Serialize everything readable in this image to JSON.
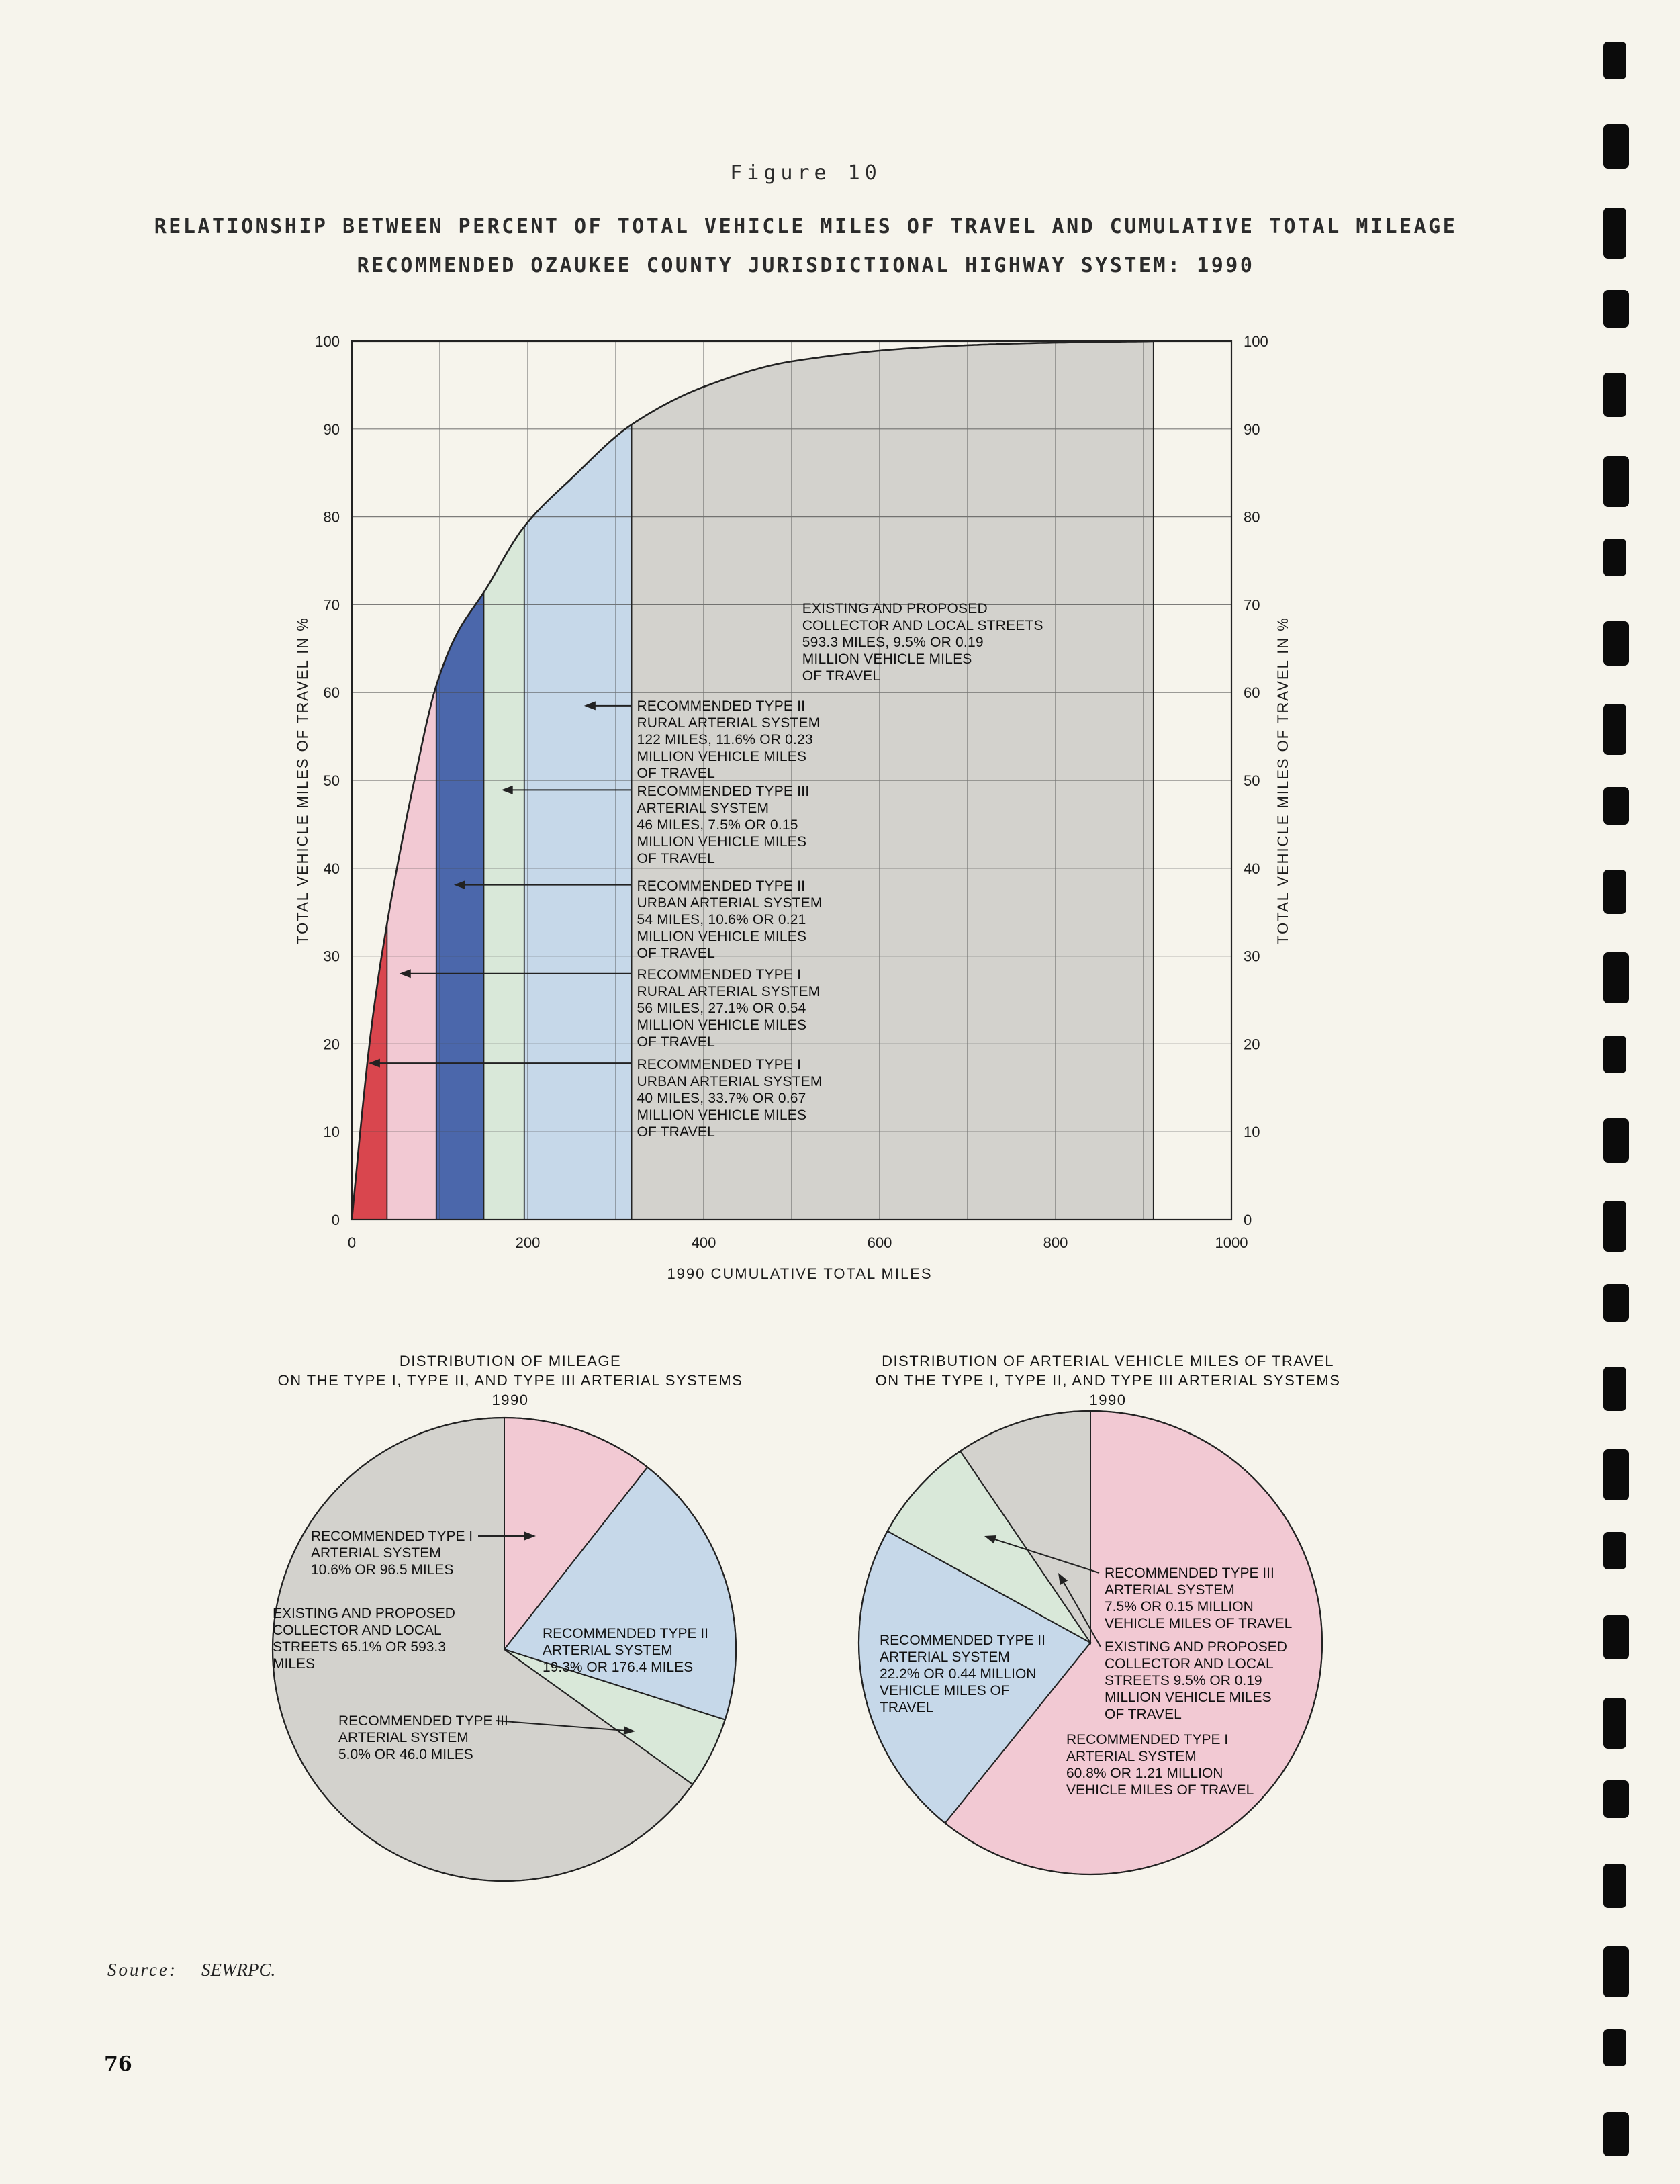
{
  "page": {
    "figure_label": "Figure 10",
    "title_line1": "RELATIONSHIP BETWEEN PERCENT OF TOTAL VEHICLE MILES OF TRAVEL AND CUMULATIVE TOTAL MILEAGE",
    "title_line2": "RECOMMENDED OZAUKEE COUNTY JURISDICTIONAL HIGHWAY SYSTEM:  1990",
    "source_label": "Source:",
    "source_value": "SEWRPC.",
    "page_number": "76"
  },
  "colors": {
    "paper": "#f6f4ec",
    "ink": "#222222",
    "grid": "#4a4a4a",
    "red": "#d9464e",
    "pink": "#f2c9d3",
    "blue": "#4b67ab",
    "green": "#d9e8d9",
    "lightblue": "#c6d8e9",
    "gray": "#d3d2cd"
  },
  "chart_data": [
    {
      "type": "area",
      "title": "RELATIONSHIP BETWEEN PERCENT OF TOTAL VEHICLE MILES OF TRAVEL AND CUMULATIVE TOTAL MILEAGE — RECOMMENDED OZAUKEE COUNTY JURISDICTIONAL HIGHWAY SYSTEM: 1990",
      "xlabel": "1990 CUMULATIVE TOTAL MILES",
      "ylabel_left": "TOTAL VEHICLE MILES OF TRAVEL IN %",
      "ylabel_right": "TOTAL VEHICLE MILES OF TRAVEL IN %",
      "xlim": [
        0,
        1000
      ],
      "ylim": [
        0,
        100
      ],
      "x_ticks": [
        0,
        200,
        400,
        600,
        800,
        1000
      ],
      "y_ticks": [
        0,
        10,
        20,
        30,
        40,
        50,
        60,
        70,
        80,
        90,
        100
      ],
      "x_grid_step": 100,
      "y_grid_step": 10,
      "grid": true,
      "curve_points": [
        [
          0,
          0
        ],
        [
          10,
          10.5
        ],
        [
          20,
          20
        ],
        [
          30,
          27.5
        ],
        [
          40,
          33.7
        ],
        [
          55,
          42
        ],
        [
          70,
          49.5
        ],
        [
          96,
          60.8
        ],
        [
          120,
          66.8
        ],
        [
          150,
          71.4
        ],
        [
          196,
          78.9
        ],
        [
          250,
          84.4
        ],
        [
          318,
          90.5
        ],
        [
          400,
          94.8
        ],
        [
          500,
          97.7
        ],
        [
          650,
          99.3
        ],
        [
          780,
          99.8
        ],
        [
          911.3,
          100
        ]
      ],
      "bands": [
        {
          "key": "type1_urban",
          "system": "RECOMMENDED TYPE I URBAN ARTERIAL SYSTEM",
          "x0": 0,
          "x1": 40,
          "miles": 40,
          "pct_vmt": 33.7,
          "million_vmt": 0.67,
          "cum_pct": 33.7,
          "color_key": "red"
        },
        {
          "key": "type1_rural",
          "system": "RECOMMENDED TYPE I RURAL ARTERIAL SYSTEM",
          "x0": 40,
          "x1": 96,
          "miles": 56,
          "pct_vmt": 27.1,
          "million_vmt": 0.54,
          "cum_pct": 60.8,
          "color_key": "pink"
        },
        {
          "key": "type2_urban",
          "system": "RECOMMENDED TYPE II URBAN ARTERIAL SYSTEM",
          "x0": 96,
          "x1": 150,
          "miles": 54,
          "pct_vmt": 10.6,
          "million_vmt": 0.21,
          "cum_pct": 71.4,
          "color_key": "blue"
        },
        {
          "key": "type3",
          "system": "RECOMMENDED TYPE III ARTERIAL SYSTEM",
          "x0": 150,
          "x1": 196,
          "miles": 46,
          "pct_vmt": 7.5,
          "million_vmt": 0.15,
          "cum_pct": 78.9,
          "color_key": "green"
        },
        {
          "key": "type2_rural",
          "system": "RECOMMENDED TYPE II RURAL ARTERIAL SYSTEM",
          "x0": 196,
          "x1": 318,
          "miles": 122,
          "pct_vmt": 11.6,
          "million_vmt": 0.23,
          "cum_pct": 90.5,
          "color_key": "lightblue"
        },
        {
          "key": "collector_local",
          "system": "EXISTING AND PROPOSED COLLECTOR AND LOCAL STREETS",
          "x0": 318,
          "x1": 911.3,
          "miles": 593.3,
          "pct_vmt": 9.5,
          "million_vmt": 0.19,
          "cum_pct": 100,
          "color_key": "gray"
        }
      ],
      "annotations": [
        {
          "key": "collector_local",
          "lines": [
            "EXISTING AND PROPOSED",
            "COLLECTOR AND LOCAL STREETS",
            "593.3 MILES, 9.5% OR 0.19",
            "MILLION VEHICLE MILES",
            "OF TRAVEL"
          ],
          "label_at": [
            512,
            70.5
          ],
          "arrow_to": null
        },
        {
          "key": "type2_rural",
          "lines": [
            "RECOMMENDED TYPE II",
            "RURAL ARTERIAL SYSTEM",
            "122 MILES, 11.6% OR 0.23",
            "MILLION VEHICLE MILES",
            "OF TRAVEL"
          ],
          "label_at": [
            324,
            59.4
          ],
          "arrow_to": [
            264,
            58.5
          ]
        },
        {
          "key": "type3",
          "lines": [
            "RECOMMENDED TYPE III",
            "ARTERIAL SYSTEM",
            "46 MILES, 7.5% OR 0.15",
            "MILLION VEHICLE MILES",
            "OF TRAVEL"
          ],
          "label_at": [
            324,
            49.7
          ],
          "arrow_to": [
            170,
            48.9
          ]
        },
        {
          "key": "type2_urban",
          "lines": [
            "RECOMMENDED TYPE II",
            "URBAN ARTERIAL SYSTEM",
            "54 MILES, 10.6% OR 0.21",
            "MILLION VEHICLE MILES",
            "OF TRAVEL"
          ],
          "label_at": [
            324,
            38.9
          ],
          "arrow_to": [
            116,
            38.1
          ]
        },
        {
          "key": "type1_rural",
          "lines": [
            "RECOMMENDED TYPE I",
            "RURAL ARTERIAL SYSTEM",
            "56 MILES, 27.1% OR 0.54",
            "MILLION VEHICLE MILES",
            "OF TRAVEL"
          ],
          "label_at": [
            324,
            28.8
          ],
          "arrow_to": [
            54,
            28.0
          ]
        },
        {
          "key": "type1_urban",
          "lines": [
            "RECOMMENDED TYPE I",
            "URBAN ARTERIAL SYSTEM",
            "40 MILES, 33.7% OR 0.67",
            "MILLION VEHICLE MILES",
            "OF TRAVEL"
          ],
          "label_at": [
            324,
            18.6
          ],
          "arrow_to": [
            19,
            17.8
          ]
        }
      ]
    },
    {
      "type": "pie",
      "title_lines": [
        "DISTRIBUTION OF MILEAGE",
        "ON THE TYPE I, TYPE II, AND TYPE III ARTERIAL SYSTEMS",
        "1990"
      ],
      "start_angle": "12 o'clock, clockwise",
      "slices": [
        {
          "key": "type1",
          "pct": 10.6,
          "color_key": "pink",
          "label_lines": [
            "RECOMMENDED TYPE I",
            "ARTERIAL SYSTEM",
            "10.6% OR 96.5 MILES"
          ]
        },
        {
          "key": "type2",
          "pct": 19.3,
          "color_key": "lightblue",
          "label_lines": [
            "RECOMMENDED TYPE II",
            "ARTERIAL SYSTEM",
            "19.3% OR 176.4 MILES"
          ]
        },
        {
          "key": "type3",
          "pct": 5.0,
          "color_key": "green",
          "label_lines": [
            "RECOMMENDED TYPE III",
            "ARTERIAL SYSTEM",
            "5.0% OR 46.0 MILES"
          ]
        },
        {
          "key": "collector",
          "pct": 65.1,
          "color_key": "gray",
          "label_lines": [
            "EXISTING AND PROPOSED",
            "COLLECTOR AND LOCAL",
            "STREETS 65.1% OR 593.3",
            "MILES"
          ]
        }
      ]
    },
    {
      "type": "pie",
      "title_lines": [
        "DISTRIBUTION OF ARTERIAL VEHICLE MILES OF TRAVEL",
        "ON THE TYPE I, TYPE II, AND TYPE III ARTERIAL SYSTEMS",
        "1990"
      ],
      "start_angle": "12 o'clock, clockwise",
      "slices": [
        {
          "key": "type1",
          "pct": 60.8,
          "color_key": "pink",
          "label_lines": [
            "RECOMMENDED TYPE I",
            "ARTERIAL SYSTEM",
            "60.8% OR 1.21 MILLION",
            "VEHICLE MILES OF TRAVEL"
          ]
        },
        {
          "key": "type2",
          "pct": 22.2,
          "color_key": "lightblue",
          "label_lines": [
            "RECOMMENDED TYPE II",
            "ARTERIAL SYSTEM",
            "22.2% OR 0.44 MILLION",
            "VEHICLE MILES OF",
            "TRAVEL"
          ]
        },
        {
          "key": "type3",
          "pct": 7.5,
          "color_key": "green",
          "label_lines": [
            "RECOMMENDED TYPE III",
            "ARTERIAL SYSTEM",
            "7.5% OR 0.15 MILLION",
            "VEHICLE MILES OF TRAVEL"
          ]
        },
        {
          "key": "collector",
          "pct": 9.5,
          "color_key": "gray",
          "label_lines": [
            "EXISTING AND PROPOSED",
            "COLLECTOR AND LOCAL",
            "STREETS 9.5% OR 0.19",
            "MILLION VEHICLE MILES",
            "OF TRAVEL"
          ]
        }
      ]
    }
  ]
}
